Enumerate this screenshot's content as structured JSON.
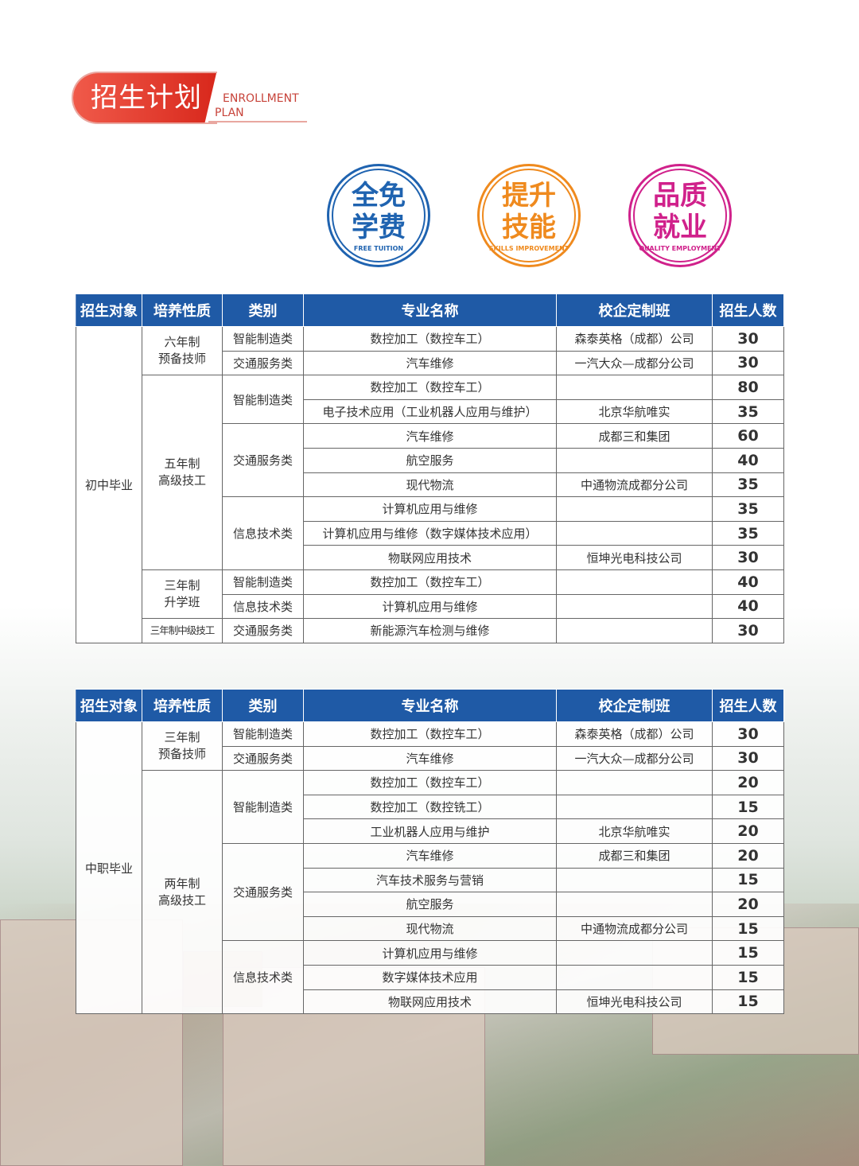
{
  "header": {
    "title_cn": "招生计划",
    "title_en_1": "ENROLLMENT",
    "title_en_2": "PLAN"
  },
  "badges": [
    {
      "line1": "全免",
      "line2": "学费",
      "en": "FREE TUITION",
      "color": "#1f63b0"
    },
    {
      "line1": "提升",
      "line2": "技能",
      "en": "SKILLS IMPROVEMENT",
      "color": "#ef8a1e"
    },
    {
      "line1": "品质",
      "line2": "就业",
      "en": "QUALITY EMPLOYMENT",
      "color": "#d0218b"
    }
  ],
  "columns": [
    "招生对象",
    "培养性质",
    "类别",
    "专业名称",
    "校企定制班",
    "招生人数"
  ],
  "tables": [
    {
      "target": "初中毕业",
      "groups": [
        {
          "nature": "六年制\n预备技师",
          "cats": [
            {
              "cat": "智能制造类",
              "rows": [
                [
                  "数控加工（数控车工）",
                  "森泰英格（成都）公司",
                  "30"
                ]
              ]
            },
            {
              "cat": "交通服务类",
              "rows": [
                [
                  "汽车维修",
                  "一汽大众—成都分公司",
                  "30"
                ]
              ]
            }
          ]
        },
        {
          "nature": "五年制\n高级技工",
          "cats": [
            {
              "cat": "智能制造类",
              "rows": [
                [
                  "数控加工（数控车工）",
                  "",
                  "80"
                ],
                [
                  "电子技术应用（工业机器人应用与维护）",
                  "北京华航唯实",
                  "35"
                ]
              ]
            },
            {
              "cat": "交通服务类",
              "rows": [
                [
                  "汽车维修",
                  "成都三和集团",
                  "60"
                ],
                [
                  "航空服务",
                  "",
                  "40"
                ],
                [
                  "现代物流",
                  "中通物流成都分公司",
                  "35"
                ]
              ]
            },
            {
              "cat": "信息技术类",
              "rows": [
                [
                  "计算机应用与维修",
                  "",
                  "35"
                ],
                [
                  "计算机应用与维修（数字媒体技术应用）",
                  "",
                  "35"
                ],
                [
                  "物联网应用技术",
                  "恒坤光电科技公司",
                  "30"
                ]
              ]
            }
          ]
        },
        {
          "nature": "三年制\n升学班",
          "cats": [
            {
              "cat": "智能制造类",
              "rows": [
                [
                  "数控加工（数控车工）",
                  "",
                  "40"
                ]
              ]
            },
            {
              "cat": "信息技术类",
              "rows": [
                [
                  "计算机应用与维修",
                  "",
                  "40"
                ]
              ]
            }
          ]
        },
        {
          "nature": "三年制中级技工",
          "cats": [
            {
              "cat": "交通服务类",
              "rows": [
                [
                  "新能源汽车检测与维修",
                  "",
                  "30"
                ]
              ]
            }
          ]
        }
      ]
    },
    {
      "target": "中职毕业",
      "groups": [
        {
          "nature": "三年制\n预备技师",
          "cats": [
            {
              "cat": "智能制造类",
              "rows": [
                [
                  "数控加工（数控车工）",
                  "森泰英格（成都）公司",
                  "30"
                ]
              ]
            },
            {
              "cat": "交通服务类",
              "rows": [
                [
                  "汽车维修",
                  "一汽大众—成都分公司",
                  "30"
                ]
              ]
            }
          ]
        },
        {
          "nature": "两年制\n高级技工",
          "cats": [
            {
              "cat": "智能制造类",
              "rows": [
                [
                  "数控加工（数控车工）",
                  "",
                  "20"
                ],
                [
                  "数控加工（数控铣工）",
                  "",
                  "15"
                ],
                [
                  "工业机器人应用与维护",
                  "北京华航唯实",
                  "20"
                ]
              ]
            },
            {
              "cat": "交通服务类",
              "rows": [
                [
                  "汽车维修",
                  "成都三和集团",
                  "20"
                ],
                [
                  "汽车技术服务与营销",
                  "",
                  "15"
                ],
                [
                  "航空服务",
                  "",
                  "20"
                ],
                [
                  "现代物流",
                  "中通物流成都分公司",
                  "15"
                ]
              ]
            },
            {
              "cat": "信息技术类",
              "rows": [
                [
                  "计算机应用与维修",
                  "",
                  "15"
                ],
                [
                  "数字媒体技术应用",
                  "",
                  "15"
                ],
                [
                  "物联网应用技术",
                  "恒坤光电科技公司",
                  "15"
                ]
              ]
            }
          ]
        }
      ]
    }
  ]
}
